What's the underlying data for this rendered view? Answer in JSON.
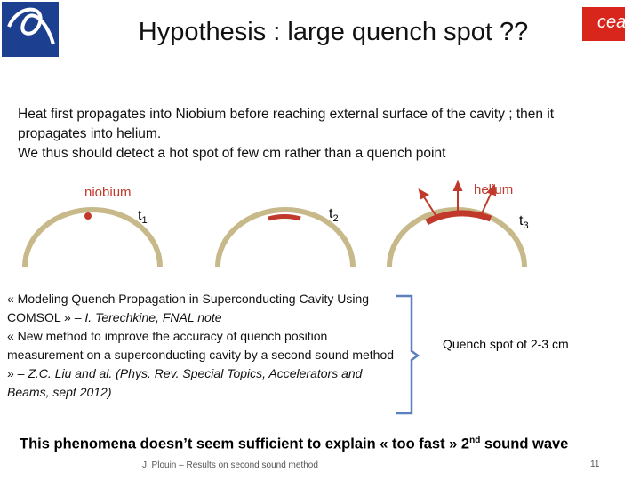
{
  "header": {
    "title": "Hypothesis : large quench spot ??",
    "logo_right": "cea"
  },
  "intro": {
    "lines": [
      "Heat first propagates into Niobium before reaching external surface of the cavity ; then it propagates into helium.",
      "We thus should detect a hot spot of few cm rather than a quench point"
    ]
  },
  "diagram": {
    "niobium": "niobium",
    "helium": "helium",
    "times": [
      {
        "t": "t",
        "sub": "1"
      },
      {
        "t": "t",
        "sub": "2"
      },
      {
        "t": "t",
        "sub": "3"
      }
    ]
  },
  "references": [
    {
      "text": "« Modeling Quench Propagation in Superconducting Cavity Using COMSOL » – ",
      "italic": "I. Terechkine, FNAL note"
    },
    {
      "text": "« New method to improve the accuracy of quench position measurement on a superconducting cavity by a second sound method » – ",
      "italic": "Z.C. Liu and al. (Phys. Rev. Special Topics, Accelerators and Beams, sept 2012)"
    }
  ],
  "result": "Quench spot of 2-3 cm",
  "conclusion": {
    "before": "This phenomena doesn’t seem sufficient to explain « too fast » 2",
    "sup": "nd",
    "after": " sound wave"
  },
  "footer": {
    "author": "J. Plouin – Results on second sound method",
    "page": "11"
  }
}
